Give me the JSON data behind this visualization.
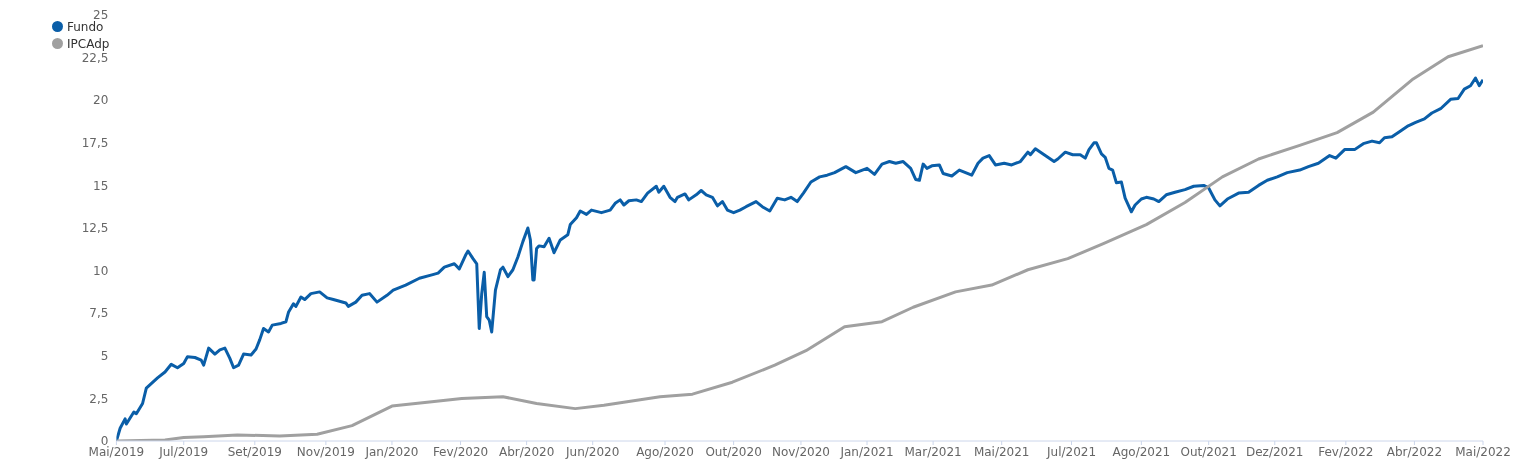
{
  "chart_data": {
    "type": "line",
    "legend": "top left",
    "grid": false,
    "marker": "none",
    "line_style": "solid",
    "xlim": [
      "2019-05-29",
      "2022-05-29"
    ],
    "xticks": [
      {
        "value": "2019-05-29",
        "label": "Mai/2019"
      },
      {
        "value": "2019-07-22",
        "label": "Jul/2019"
      },
      {
        "value": "2019-09-17",
        "label": "Set/2019"
      },
      {
        "value": "2019-11-13",
        "label": "Nov/2019"
      },
      {
        "value": "2020-01-05",
        "label": "Jan/2020"
      },
      {
        "value": "2020-02-29",
        "label": "Fev/2020"
      },
      {
        "value": "2020-04-22",
        "label": "Abr/2020"
      },
      {
        "value": "2020-06-14",
        "label": "Jun/2020"
      },
      {
        "value": "2020-08-11",
        "label": "Ago/2020"
      },
      {
        "value": "2020-10-05",
        "label": "Out/2020"
      },
      {
        "value": "2020-11-28",
        "label": "Nov/2020"
      },
      {
        "value": "2021-01-20",
        "label": "Jan/2021"
      },
      {
        "value": "2021-03-14",
        "label": "Mar/2021"
      },
      {
        "value": "2021-05-08",
        "label": "Mai/2021"
      },
      {
        "value": "2021-07-03",
        "label": "Jul/2021"
      },
      {
        "value": "2021-08-28",
        "label": "Ago/2021"
      },
      {
        "value": "2021-10-21",
        "label": "Out/2021"
      },
      {
        "value": "2021-12-13",
        "label": "Dez/2021"
      },
      {
        "value": "2022-02-08",
        "label": "Fev/2022"
      },
      {
        "value": "2022-04-04",
        "label": "Abr/2022"
      },
      {
        "value": "2022-05-29",
        "label": "Mai/2022"
      }
    ],
    "ylim": [
      0,
      25
    ],
    "yticks": [
      0,
      {
        "value": 2.5,
        "label": "2,5"
      },
      5,
      {
        "value": 7.5,
        "label": "7,5"
      },
      10,
      {
        "value": 12.5,
        "label": "12,5"
      },
      15,
      {
        "value": 17.5,
        "label": "17,5"
      },
      20,
      {
        "value": 22.5,
        "label": "22,5"
      },
      25
    ],
    "series": [
      {
        "name": "Fundo",
        "color": "#0a5ea8",
        "x": [
          "2019-05-29",
          "2019-06-01",
          "2019-06-05",
          "2019-06-06",
          "2019-06-12",
          "2019-06-14",
          "2019-06-19",
          "2019-06-22",
          "2019-07-01",
          "2019-07-07",
          "2019-07-12",
          "2019-07-17",
          "2019-07-22",
          "2019-07-25",
          "2019-07-31",
          "2019-08-05",
          "2019-08-07",
          "2019-08-11",
          "2019-08-16",
          "2019-08-20",
          "2019-08-24",
          "2019-08-28",
          "2019-08-31",
          "2019-09-04",
          "2019-09-08",
          "2019-09-14",
          "2019-09-18",
          "2019-09-21",
          "2019-09-24",
          "2019-09-28",
          "2019-10-01",
          "2019-10-08",
          "2019-10-12",
          "2019-10-14",
          "2019-10-18",
          "2019-10-20",
          "2019-10-24",
          "2019-10-27",
          "2019-11-01",
          "2019-11-08",
          "2019-11-14",
          "2019-11-19",
          "2019-11-29",
          "2019-12-01",
          "2019-12-07",
          "2019-12-12",
          "2019-12-18",
          "2019-12-24",
          "2020-01-01",
          "2020-01-06",
          "2020-01-16",
          "2020-01-27",
          "2020-02-06",
          "2020-02-11",
          "2020-02-16",
          "2020-02-24",
          "2020-02-28",
          "2020-03-04",
          "2020-03-06",
          "2020-03-10",
          "2020-03-13",
          "2020-03-15",
          "2020-03-17",
          "2020-03-19",
          "2020-03-21",
          "2020-03-23",
          "2020-03-25",
          "2020-03-28",
          "2020-04-01",
          "2020-04-03",
          "2020-04-07",
          "2020-04-11",
          "2020-04-15",
          "2020-04-19",
          "2020-04-23",
          "2020-04-25",
          "2020-04-27",
          "2020-04-28",
          "2020-04-30",
          "2020-05-02",
          "2020-05-06",
          "2020-05-10",
          "2020-05-14",
          "2020-05-19",
          "2020-05-25",
          "2020-05-27",
          "2020-06-01",
          "2020-06-04",
          "2020-06-09",
          "2020-06-13",
          "2020-06-21",
          "2020-06-28",
          "2020-07-02",
          "2020-07-06",
          "2020-07-09",
          "2020-07-13",
          "2020-07-19",
          "2020-07-23",
          "2020-07-28",
          "2020-08-04",
          "2020-08-06",
          "2020-08-10",
          "2020-08-15",
          "2020-08-19",
          "2020-08-21",
          "2020-08-27",
          "2020-08-30",
          "2020-09-05",
          "2020-09-09",
          "2020-09-13",
          "2020-09-18",
          "2020-09-22",
          "2020-09-26",
          "2020-09-30",
          "2020-10-05",
          "2020-10-10",
          "2020-10-15",
          "2020-10-23",
          "2020-10-28",
          "2020-11-03",
          "2020-11-09",
          "2020-11-15",
          "2020-11-20",
          "2020-11-25",
          "2020-11-30",
          "2020-12-06",
          "2020-12-13",
          "2020-12-19",
          "2020-12-25",
          "2021-01-03",
          "2021-01-11",
          "2021-01-20",
          "2021-01-26",
          "2021-02-01",
          "2021-02-07",
          "2021-02-12",
          "2021-02-18",
          "2021-02-24",
          "2021-02-28",
          "2021-03-03",
          "2021-03-06",
          "2021-03-09",
          "2021-03-13",
          "2021-03-19",
          "2021-03-22",
          "2021-03-29",
          "2021-04-04",
          "2021-04-09",
          "2021-04-14",
          "2021-04-19",
          "2021-04-23",
          "2021-04-28",
          "2021-05-03",
          "2021-05-10",
          "2021-05-16",
          "2021-05-23",
          "2021-05-29",
          "2021-05-31",
          "2021-06-04",
          "2021-06-09",
          "2021-06-14",
          "2021-06-19",
          "2021-06-22",
          "2021-06-28",
          "2021-07-04",
          "2021-07-10",
          "2021-07-14",
          "2021-07-17",
          "2021-07-21",
          "2021-07-23",
          "2021-07-27",
          "2021-07-30",
          "2021-08-02",
          "2021-08-05",
          "2021-08-08",
          "2021-08-12",
          "2021-08-15",
          "2021-08-20",
          "2021-08-23",
          "2021-08-28",
          "2021-09-01",
          "2021-09-07",
          "2021-09-11",
          "2021-09-17",
          "2021-09-24",
          "2021-10-02",
          "2021-10-09",
          "2021-10-17",
          "2021-10-21",
          "2021-10-26",
          "2021-10-30",
          "2021-11-05",
          "2021-11-14",
          "2021-11-22",
          "2021-11-30",
          "2021-12-07",
          "2021-12-15",
          "2021-12-23",
          "2022-01-02",
          "2022-01-09",
          "2022-01-17",
          "2022-01-26",
          "2022-01-31",
          "2022-02-07",
          "2022-02-15",
          "2022-02-22",
          "2022-03-01",
          "2022-03-07",
          "2022-03-11",
          "2022-03-17",
          "2022-03-23",
          "2022-03-30",
          "2022-04-05",
          "2022-04-12",
          "2022-04-18",
          "2022-04-25",
          "2022-05-03",
          "2022-05-09",
          "2022-05-14",
          "2022-05-19",
          "2022-05-23",
          "2022-05-26",
          "2022-05-29"
        ],
        "values": [
          0,
          0.75,
          1.3,
          1.0,
          1.7,
          1.6,
          2.2,
          3.1,
          3.7,
          4.05,
          4.5,
          4.3,
          4.55,
          4.95,
          4.9,
          4.75,
          4.45,
          5.45,
          5.1,
          5.35,
          5.45,
          4.85,
          4.3,
          4.45,
          5.1,
          5.05,
          5.4,
          5.95,
          6.6,
          6.4,
          6.8,
          6.9,
          7.0,
          7.55,
          8.05,
          7.9,
          8.45,
          8.3,
          8.65,
          8.75,
          8.4,
          8.3,
          8.1,
          7.9,
          8.15,
          8.55,
          8.65,
          8.15,
          8.55,
          8.85,
          9.15,
          9.55,
          9.75,
          9.85,
          10.2,
          10.4,
          10.1,
          10.9,
          11.15,
          10.7,
          10.4,
          6.6,
          8.65,
          9.9,
          7.3,
          7.1,
          6.4,
          8.85,
          10.05,
          10.2,
          9.65,
          10.05,
          10.8,
          11.7,
          12.5,
          11.8,
          9.45,
          9.45,
          11.3,
          11.45,
          11.4,
          11.9,
          11.05,
          11.8,
          12.1,
          12.7,
          13.1,
          13.5,
          13.3,
          13.55,
          13.4,
          13.55,
          13.95,
          14.15,
          13.85,
          14.1,
          14.15,
          14.05,
          14.55,
          14.95,
          14.6,
          14.95,
          14.3,
          14.05,
          14.3,
          14.5,
          14.15,
          14.45,
          14.7,
          14.45,
          14.3,
          13.8,
          14.05,
          13.55,
          13.4,
          13.55,
          13.75,
          14.05,
          13.75,
          13.5,
          14.25,
          14.15,
          14.3,
          14.05,
          14.55,
          15.2,
          15.5,
          15.6,
          15.75,
          16.1,
          15.75,
          16.0,
          15.65,
          16.25,
          16.4,
          16.3,
          16.4,
          16.0,
          15.35,
          15.3,
          16.25,
          16.0,
          16.15,
          16.2,
          15.7,
          15.55,
          15.9,
          15.75,
          15.6,
          16.3,
          16.6,
          16.75,
          16.2,
          16.3,
          16.2,
          16.4,
          16.95,
          16.8,
          17.15,
          16.9,
          16.65,
          16.4,
          16.55,
          16.95,
          16.8,
          16.8,
          16.6,
          17.1,
          17.5,
          17.5,
          16.85,
          16.65,
          16.0,
          15.9,
          15.15,
          15.2,
          14.25,
          13.45,
          13.85,
          14.2,
          14.3,
          14.2,
          14.05,
          14.45,
          14.6,
          14.75,
          14.95,
          15.0,
          14.85,
          14.15,
          13.8,
          14.2,
          14.55,
          14.6,
          15.0,
          15.3,
          15.5,
          15.75,
          15.9,
          16.1,
          16.3,
          16.75,
          16.6,
          17.1,
          17.1,
          17.45,
          17.6,
          17.5,
          17.8,
          17.85,
          18.15,
          18.5,
          18.7,
          18.9,
          19.25,
          19.5,
          20.05,
          20.1,
          20.65,
          20.85,
          21.3,
          20.85,
          21.2
        ]
      },
      {
        "name": "IPCAdp",
        "color": "#a0a0a0",
        "x": [
          "2019-05-29",
          "2019-07-07",
          "2019-07-22",
          "2019-08-07",
          "2019-09-03",
          "2019-10-07",
          "2019-11-06",
          "2019-12-04",
          "2020-01-05",
          "2020-02-06",
          "2020-03-01",
          "2020-04-03",
          "2020-04-30",
          "2020-05-31",
          "2020-06-23",
          "2020-08-07",
          "2020-09-02",
          "2020-10-04",
          "2020-11-07",
          "2020-12-02",
          "2021-01-02",
          "2021-02-01",
          "2021-02-26",
          "2021-04-01",
          "2021-04-30",
          "2021-05-29",
          "2021-06-30",
          "2021-07-29",
          "2021-09-01",
          "2021-10-02",
          "2021-11-01",
          "2021-11-30",
          "2022-01-02",
          "2022-02-01",
          "2022-03-02",
          "2022-04-03",
          "2022-05-01",
          "2022-05-29"
        ],
        "values": [
          0,
          0.06,
          0.2,
          0.25,
          0.35,
          0.3,
          0.4,
          0.9,
          2.05,
          2.3,
          2.5,
          2.6,
          2.2,
          1.9,
          2.1,
          2.6,
          2.75,
          3.45,
          4.45,
          5.3,
          6.7,
          7.0,
          7.85,
          8.75,
          9.15,
          10.05,
          10.7,
          11.6,
          12.7,
          14.0,
          15.5,
          16.55,
          17.35,
          18.1,
          19.3,
          21.25,
          22.55,
          23.2
        ]
      }
    ]
  }
}
